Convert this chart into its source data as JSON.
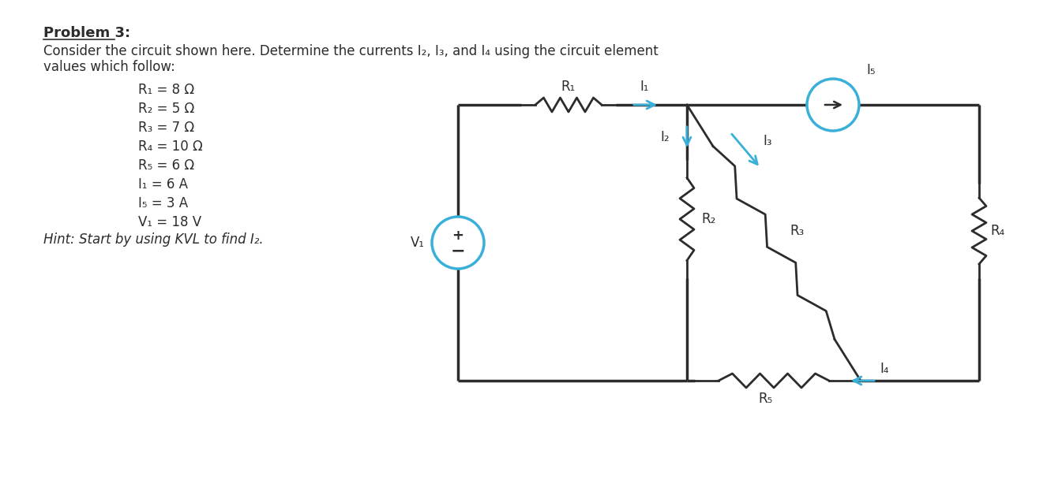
{
  "title": "Problem 3:",
  "description_line1": "Consider the circuit shown here. Determine the currents I₂, I₃, and I₄ using the circuit element",
  "description_line2": "values which follow:",
  "params": [
    "R₁ = 8 Ω",
    "R₂ = 5 Ω",
    "R₃ = 7 Ω",
    "R₄ = 10 Ω",
    "R₅ = 6 Ω",
    "I₁ = 6 A",
    "I₅ = 3 A",
    "V₁ = 18 V"
  ],
  "hint": "Hint: Start by using KVL to find I₂.",
  "circuit_color": "#2c2c2c",
  "blue_color": "#3ab0d8",
  "bg_color": "#ffffff"
}
